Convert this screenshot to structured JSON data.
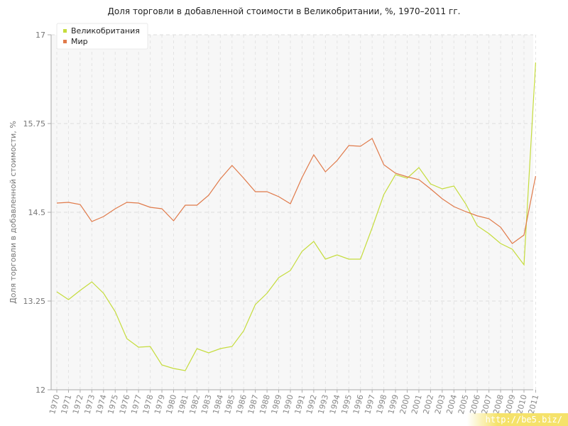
{
  "title": "Доля торговли в добавленной стоимости в Великобритании, %, 1970–2011 гг.",
  "watermark": "http://be5.biz/",
  "chart_data": {
    "type": "line",
    "ylabel": "Доля торговли в добавленной стоимости, %",
    "xlabel": "",
    "ylim": [
      12,
      17
    ],
    "yticks": [
      "12",
      "13.25",
      "14.5",
      "15.75",
      "17"
    ],
    "legend_position": "top-left",
    "grid": true,
    "x": [
      "1970",
      "1971",
      "1972",
      "1973",
      "1974",
      "1975",
      "1976",
      "1977",
      "1978",
      "1979",
      "1980",
      "1981",
      "1982",
      "1983",
      "1984",
      "1985",
      "1986",
      "1987",
      "1988",
      "1989",
      "1990",
      "1991",
      "1992",
      "1993",
      "1994",
      "1995",
      "1996",
      "1997",
      "1998",
      "1999",
      "2000",
      "2001",
      "2002",
      "2003",
      "2004",
      "2005",
      "2006",
      "2007",
      "2008",
      "2009",
      "2010",
      "2011"
    ],
    "series": [
      {
        "name": "Великобритания",
        "color": "#c5dc3c",
        "values": [
          13.38,
          13.27,
          13.4,
          13.52,
          13.36,
          13.1,
          12.72,
          12.6,
          12.61,
          12.35,
          12.3,
          12.27,
          12.58,
          12.52,
          12.58,
          12.61,
          12.83,
          13.2,
          13.36,
          13.58,
          13.68,
          13.95,
          14.09,
          13.84,
          13.9,
          13.84,
          13.84,
          14.28,
          14.75,
          15.03,
          14.98,
          15.13,
          14.9,
          14.83,
          14.87,
          14.62,
          14.31,
          14.2,
          14.06,
          13.98,
          13.76,
          16.61
        ]
      },
      {
        "name": "Мир",
        "color": "#e07a4a",
        "values": [
          14.63,
          14.64,
          14.61,
          14.37,
          14.44,
          14.55,
          14.64,
          14.63,
          14.57,
          14.55,
          14.38,
          14.6,
          14.6,
          14.74,
          14.97,
          15.16,
          14.98,
          14.79,
          14.79,
          14.72,
          14.62,
          14.99,
          15.31,
          15.07,
          15.23,
          15.44,
          15.43,
          15.54,
          15.17,
          15.05,
          15.0,
          14.96,
          14.83,
          14.69,
          14.58,
          14.51,
          14.45,
          14.41,
          14.29,
          14.06,
          14.18,
          15.01
        ]
      }
    ]
  }
}
